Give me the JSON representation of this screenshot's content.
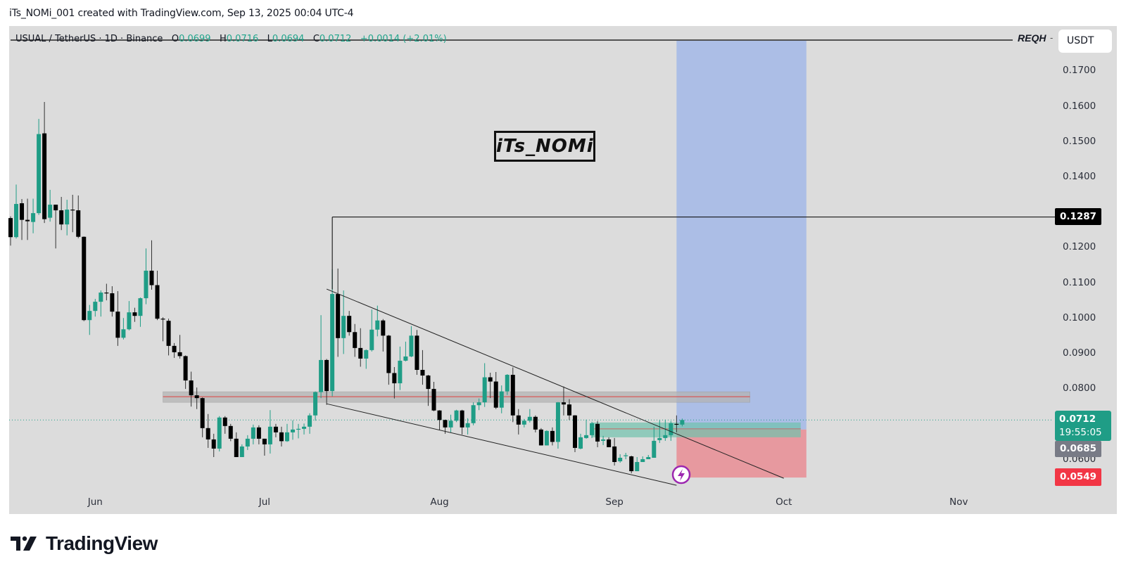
{
  "credit": "iTs_NOMi_001 created with TradingView.com, Sep 13, 2025 00:04 UTC-4",
  "legend": {
    "symbol": "USUAL / TetherUS · 1D · Binance",
    "o_label": "O",
    "o": "0.0699",
    "h_label": "H",
    "h": "0.0716",
    "l_label": "L",
    "l": "0.0694",
    "c_label": "C",
    "c": "0.0712",
    "change": "+0.0014 (+2.01%)"
  },
  "indicator_tag": "REQH",
  "indicator_dash": "-",
  "currency_button": "USDT",
  "watermark": "iTs_NOMi",
  "logo_text": "TradingView",
  "price_labels": {
    "last_price": "0.0712",
    "countdown": "19:55:05",
    "entry": "0.0685",
    "stop": "0.0549",
    "level": "0.1287"
  },
  "colors": {
    "up": "#1f9d86",
    "down": "#000000",
    "background": "#dcdcdc",
    "target_zone": "#a9bce6",
    "stop_zone": "#e7959b",
    "last_price_label": "#1f9d86",
    "entry_label": "#787b86",
    "stop_label": "#f23645",
    "level_label": "#000000",
    "zone_gray": "#b4b4b4",
    "zone_line": "#e0403f",
    "green_zone": "#6fc2ad",
    "alert_icon": "#9c27b0"
  },
  "chart_data": {
    "type": "candlestick",
    "symbol": "USUAL / TetherUS",
    "interval": "1D",
    "exchange": "Binance",
    "y_axis": {
      "ticks": [
        "0.1700",
        "0.1600",
        "0.1500",
        "0.1400",
        "0.1200",
        "0.1100",
        "0.1000",
        "0.0900",
        "0.0800",
        "0.0600"
      ],
      "range": [
        0.05,
        0.1786
      ]
    },
    "x_axis": {
      "ticks": [
        "Jun",
        "Jul",
        "Aug",
        "Sep",
        "Oct",
        "Nov"
      ],
      "tick_dates": [
        "2025-06-01",
        "2025-07-01",
        "2025-08-01",
        "2025-09-01",
        "2025-10-01",
        "2025-11-01"
      ],
      "range": [
        "2025-05-17",
        "2025-11-24"
      ]
    },
    "grid": false,
    "candles_format": [
      "date",
      "open",
      "high",
      "low",
      "close"
    ],
    "candles": [
      [
        "2025-05-17",
        0.1284,
        0.1289,
        0.1206,
        0.123
      ],
      [
        "2025-05-18",
        0.123,
        0.1379,
        0.1226,
        0.1324
      ],
      [
        "2025-05-19",
        0.1326,
        0.1338,
        0.1222,
        0.1279
      ],
      [
        "2025-05-20",
        0.1279,
        0.1339,
        0.1222,
        0.1275
      ],
      [
        "2025-05-21",
        0.1273,
        0.1339,
        0.1241,
        0.1298
      ],
      [
        "2025-05-22",
        0.1298,
        0.1565,
        0.1293,
        0.1522
      ],
      [
        "2025-05-23",
        0.1524,
        0.1613,
        0.127,
        0.1281
      ],
      [
        "2025-05-24",
        0.1285,
        0.1364,
        0.1274,
        0.1322
      ],
      [
        "2025-05-25",
        0.1322,
        0.1322,
        0.1198,
        0.1306
      ],
      [
        "2025-05-26",
        0.1306,
        0.1344,
        0.125,
        0.1266
      ],
      [
        "2025-05-27",
        0.1266,
        0.1336,
        0.1235,
        0.1308
      ],
      [
        "2025-05-28",
        0.1308,
        0.135,
        0.1244,
        0.1306
      ],
      [
        "2025-05-29",
        0.1306,
        0.1348,
        0.1227,
        0.1231
      ],
      [
        "2025-05-30",
        0.1231,
        0.1232,
        0.0992,
        0.0995
      ],
      [
        "2025-05-31",
        0.0995,
        0.1038,
        0.0953,
        0.1021
      ],
      [
        "2025-06-01",
        0.1021,
        0.1055,
        0.1005,
        0.1047
      ],
      [
        "2025-06-02",
        0.1047,
        0.1079,
        0.1005,
        0.1073
      ],
      [
        "2025-06-03",
        0.1073,
        0.1098,
        0.1051,
        0.1071
      ],
      [
        "2025-06-04",
        0.1071,
        0.1091,
        0.1005,
        0.1019
      ],
      [
        "2025-06-05",
        0.1019,
        0.1077,
        0.0922,
        0.0945
      ],
      [
        "2025-06-06",
        0.0945,
        0.1001,
        0.094,
        0.0969
      ],
      [
        "2025-06-07",
        0.0969,
        0.1049,
        0.0966,
        0.1017
      ],
      [
        "2025-06-08",
        0.1017,
        0.103,
        0.099,
        0.1007
      ],
      [
        "2025-06-09",
        0.1007,
        0.1059,
        0.0976,
        0.1057
      ],
      [
        "2025-06-10",
        0.1057,
        0.1198,
        0.104,
        0.1135
      ],
      [
        "2025-06-11",
        0.1135,
        0.1221,
        0.1081,
        0.1094
      ],
      [
        "2025-06-12",
        0.1094,
        0.1135,
        0.0995,
        0.0999
      ],
      [
        "2025-06-13",
        0.0999,
        0.1003,
        0.0935,
        0.0997
      ],
      [
        "2025-06-14",
        0.0993,
        0.0999,
        0.0895,
        0.0922
      ],
      [
        "2025-06-15",
        0.0922,
        0.093,
        0.0888,
        0.0904
      ],
      [
        "2025-06-16",
        0.0904,
        0.0953,
        0.0886,
        0.0893
      ],
      [
        "2025-06-17",
        0.0893,
        0.0895,
        0.08,
        0.0824
      ],
      [
        "2025-06-18",
        0.0824,
        0.0849,
        0.075,
        0.0782
      ],
      [
        "2025-06-19",
        0.0782,
        0.0804,
        0.0743,
        0.0774
      ],
      [
        "2025-06-20",
        0.0774,
        0.0776,
        0.0663,
        0.0689
      ],
      [
        "2025-06-21",
        0.0689,
        0.0729,
        0.0633,
        0.0657
      ],
      [
        "2025-06-22",
        0.0657,
        0.0673,
        0.0607,
        0.0631
      ],
      [
        "2025-06-23",
        0.0631,
        0.0723,
        0.0623,
        0.0719
      ],
      [
        "2025-06-24",
        0.0719,
        0.0723,
        0.0673,
        0.0695
      ],
      [
        "2025-06-25",
        0.0695,
        0.0701,
        0.0652,
        0.0659
      ],
      [
        "2025-06-26",
        0.0659,
        0.0677,
        0.0607,
        0.0607
      ],
      [
        "2025-06-27",
        0.0607,
        0.0643,
        0.0607,
        0.0637
      ],
      [
        "2025-06-28",
        0.0637,
        0.0669,
        0.0627,
        0.0659
      ],
      [
        "2025-06-29",
        0.0659,
        0.0699,
        0.0643,
        0.0691
      ],
      [
        "2025-06-30",
        0.0691,
        0.0697,
        0.0643,
        0.0659
      ],
      [
        "2025-07-01",
        0.0659,
        0.0659,
        0.0611,
        0.0643
      ],
      [
        "2025-07-02",
        0.0643,
        0.074,
        0.0617,
        0.0693
      ],
      [
        "2025-07-03",
        0.0693,
        0.0701,
        0.0663,
        0.0677
      ],
      [
        "2025-07-04",
        0.0677,
        0.0693,
        0.0637,
        0.0652
      ],
      [
        "2025-07-05",
        0.0652,
        0.0701,
        0.065,
        0.0677
      ],
      [
        "2025-07-06",
        0.0677,
        0.0711,
        0.0656,
        0.0685
      ],
      [
        "2025-07-07",
        0.0685,
        0.0701,
        0.066,
        0.0687
      ],
      [
        "2025-07-08",
        0.0687,
        0.0702,
        0.0671,
        0.0693
      ],
      [
        "2025-07-09",
        0.0693,
        0.0731,
        0.0673,
        0.0725
      ],
      [
        "2025-07-10",
        0.0725,
        0.0793,
        0.071,
        0.0791
      ],
      [
        "2025-07-11",
        0.0791,
        0.1009,
        0.0774,
        0.0882
      ],
      [
        "2025-07-12",
        0.0882,
        0.0885,
        0.0755,
        0.0794
      ],
      [
        "2025-07-13",
        0.0794,
        0.1139,
        0.0779,
        0.1069
      ],
      [
        "2025-07-14",
        0.1069,
        0.1141,
        0.0891,
        0.0944
      ],
      [
        "2025-07-15",
        0.0944,
        0.1079,
        0.0899,
        0.1007
      ],
      [
        "2025-07-16",
        0.1007,
        0.1021,
        0.0951,
        0.0961
      ],
      [
        "2025-07-17",
        0.0961,
        0.0984,
        0.0891,
        0.0916
      ],
      [
        "2025-07-18",
        0.0916,
        0.0972,
        0.0863,
        0.0886
      ],
      [
        "2025-07-19",
        0.0886,
        0.0912,
        0.0857,
        0.091
      ],
      [
        "2025-07-20",
        0.091,
        0.1025,
        0.0906,
        0.0968
      ],
      [
        "2025-07-21",
        0.0968,
        0.1036,
        0.0949,
        0.0994
      ],
      [
        "2025-07-22",
        0.0994,
        0.0998,
        0.0906,
        0.0951
      ],
      [
        "2025-07-23",
        0.0951,
        0.0953,
        0.0812,
        0.0845
      ],
      [
        "2025-07-24",
        0.0845,
        0.0862,
        0.0773,
        0.0816
      ],
      [
        "2025-07-25",
        0.0816,
        0.092,
        0.0797,
        0.088
      ],
      [
        "2025-07-26",
        0.088,
        0.0934,
        0.0878,
        0.0892
      ],
      [
        "2025-07-27",
        0.0892,
        0.0978,
        0.089,
        0.0951
      ],
      [
        "2025-07-28",
        0.0951,
        0.0967,
        0.084,
        0.0854
      ],
      [
        "2025-07-29",
        0.0854,
        0.091,
        0.0812,
        0.0838
      ],
      [
        "2025-07-30",
        0.0838,
        0.084,
        0.0752,
        0.08
      ],
      [
        "2025-07-31",
        0.08,
        0.082,
        0.0737,
        0.0739
      ],
      [
        "2025-08-01",
        0.0739,
        0.074,
        0.0683,
        0.0712
      ],
      [
        "2025-08-02",
        0.0712,
        0.0713,
        0.0673,
        0.0691
      ],
      [
        "2025-08-03",
        0.0691,
        0.0727,
        0.0677,
        0.071
      ],
      [
        "2025-08-04",
        0.071,
        0.0741,
        0.0706,
        0.0739
      ],
      [
        "2025-08-05",
        0.0739,
        0.0741,
        0.0671,
        0.0691
      ],
      [
        "2025-08-06",
        0.0691,
        0.0717,
        0.0671,
        0.0703
      ],
      [
        "2025-08-07",
        0.0703,
        0.0762,
        0.0697,
        0.0754
      ],
      [
        "2025-08-08",
        0.0754,
        0.0773,
        0.074,
        0.0762
      ],
      [
        "2025-08-09",
        0.0762,
        0.0873,
        0.0749,
        0.0833
      ],
      [
        "2025-08-10",
        0.0833,
        0.0846,
        0.0774,
        0.0821
      ],
      [
        "2025-08-11",
        0.0821,
        0.0848,
        0.0743,
        0.0747
      ],
      [
        "2025-08-12",
        0.0747,
        0.081,
        0.0731,
        0.0793
      ],
      [
        "2025-08-13",
        0.0793,
        0.0842,
        0.0783,
        0.084
      ],
      [
        "2025-08-14",
        0.084,
        0.0861,
        0.0706,
        0.0725
      ],
      [
        "2025-08-15",
        0.0725,
        0.0743,
        0.0671,
        0.0699
      ],
      [
        "2025-08-16",
        0.0699,
        0.0715,
        0.0691,
        0.071
      ],
      [
        "2025-08-17",
        0.071,
        0.0743,
        0.0705,
        0.0721
      ],
      [
        "2025-08-18",
        0.0721,
        0.0725,
        0.0677,
        0.0685
      ],
      [
        "2025-08-19",
        0.0685,
        0.0689,
        0.064,
        0.064
      ],
      [
        "2025-08-20",
        0.064,
        0.0683,
        0.064,
        0.0681
      ],
      [
        "2025-08-21",
        0.0681,
        0.0691,
        0.064,
        0.065
      ],
      [
        "2025-08-22",
        0.065,
        0.0763,
        0.0631,
        0.0762
      ],
      [
        "2025-08-23",
        0.0762,
        0.0807,
        0.0725,
        0.0756
      ],
      [
        "2025-08-24",
        0.0756,
        0.0771,
        0.0712,
        0.0725
      ],
      [
        "2025-08-25",
        0.0725,
        0.0726,
        0.0621,
        0.0633
      ],
      [
        "2025-08-26",
        0.0631,
        0.0673,
        0.0629,
        0.0663
      ],
      [
        "2025-08-27",
        0.0661,
        0.0713,
        0.0659,
        0.0669
      ],
      [
        "2025-08-28",
        0.0669,
        0.0707,
        0.0661,
        0.0703
      ],
      [
        "2025-08-29",
        0.0701,
        0.0709,
        0.0635,
        0.0651
      ],
      [
        "2025-08-30",
        0.0653,
        0.0667,
        0.0641,
        0.0657
      ],
      [
        "2025-08-31",
        0.0657,
        0.0663,
        0.0635,
        0.0635
      ],
      [
        "2025-09-01",
        0.0637,
        0.0661,
        0.0583,
        0.0593
      ],
      [
        "2025-09-02",
        0.0595,
        0.0615,
        0.0591,
        0.0605
      ],
      [
        "2025-09-03",
        0.061,
        0.0619,
        0.0601,
        0.0612
      ],
      [
        "2025-09-04",
        0.0609,
        0.0611,
        0.0561,
        0.0567
      ],
      [
        "2025-09-05",
        0.0567,
        0.0607,
        0.0567,
        0.0593
      ],
      [
        "2025-09-06",
        0.0593,
        0.0609,
        0.0593,
        0.0601
      ],
      [
        "2025-09-07",
        0.0601,
        0.0613,
        0.0601,
        0.0607
      ],
      [
        "2025-09-08",
        0.0605,
        0.0693,
        0.0605,
        0.0653
      ],
      [
        "2025-09-09",
        0.0655,
        0.0711,
        0.0647,
        0.0661
      ],
      [
        "2025-09-10",
        0.0661,
        0.0713,
        0.0653,
        0.0669
      ],
      [
        "2025-09-11",
        0.0669,
        0.0709,
        0.0653,
        0.0703
      ],
      [
        "2025-09-12",
        0.0701,
        0.0725,
        0.0677,
        0.0699
      ],
      [
        "2025-09-13",
        0.0699,
        0.0716,
        0.0694,
        0.0712
      ]
    ],
    "drawings": {
      "horizontal_level": {
        "price": 0.1287,
        "from_date": "2025-07-13",
        "anchor_low_price": 0.1082
      },
      "resistance_zone": {
        "top": 0.0792,
        "bottom": 0.0762,
        "line": 0.0778,
        "from_date": "2025-06-13",
        "to_date": "2025-09-25"
      },
      "breakout_zone": {
        "top": 0.0705,
        "bottom": 0.0663,
        "line": 0.0687,
        "from_date": "2025-08-28",
        "to_date": "2025-10-04"
      },
      "wedge_upper": {
        "from": [
          "2025-07-12",
          0.1083
        ],
        "to": [
          "2025-10-01",
          0.0547
        ]
      },
      "wedge_lower": {
        "from": [
          "2025-07-12",
          0.0758
        ],
        "to": [
          "2025-09-12",
          0.0527
        ]
      },
      "long_position": {
        "entry": 0.0685,
        "stop": 0.0549,
        "from_date": "2025-09-12",
        "to_date": "2025-10-05"
      },
      "last_price": 0.0712
    }
  }
}
